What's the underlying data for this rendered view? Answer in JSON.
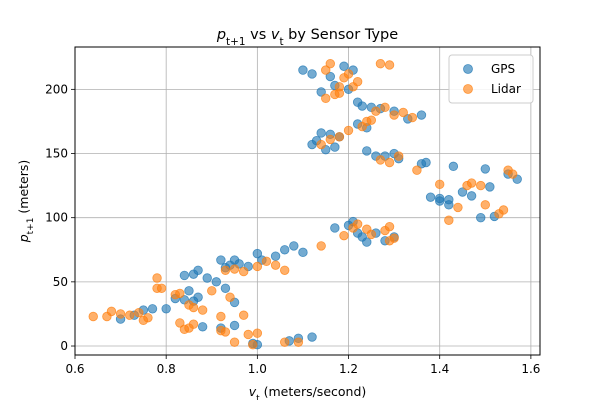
{
  "chart_data": {
    "type": "scatter",
    "title": {
      "var": "p",
      "sub": "t+1",
      "mid": " vs ",
      "var2": "v",
      "sub2": "t",
      "rest": " by Sensor Type"
    },
    "xlabel": {
      "var": "v",
      "sub": "t",
      "rest": " (meters/second)"
    },
    "ylabel": {
      "var": "p",
      "sub": "t+1",
      "rest": " (meters)"
    },
    "xlim": [
      0.6,
      1.62
    ],
    "ylim": [
      -7,
      233
    ],
    "xticks": [
      0.6,
      0.8,
      1.0,
      1.2,
      1.4,
      1.6
    ],
    "xtick_labels": [
      "0.6",
      "0.8",
      "1.0",
      "1.2",
      "1.4",
      "1.6"
    ],
    "yticks": [
      0,
      50,
      100,
      150,
      200
    ],
    "ytick_labels": [
      "0",
      "50",
      "100",
      "150",
      "200"
    ],
    "grid": true,
    "legend_position": "top-right",
    "series": [
      {
        "name": "GPS",
        "color": "#1f77b4",
        "points": [
          [
            0.7,
            21
          ],
          [
            0.73,
            24
          ],
          [
            0.75,
            28
          ],
          [
            0.77,
            29
          ],
          [
            0.8,
            29
          ],
          [
            0.82,
            37
          ],
          [
            0.84,
            36
          ],
          [
            0.86,
            35
          ],
          [
            0.88,
            15
          ],
          [
            0.92,
            14
          ],
          [
            0.95,
            16
          ],
          [
            0.99,
            2
          ],
          [
            1.0,
            1
          ],
          [
            0.84,
            55
          ],
          [
            0.86,
            56
          ],
          [
            0.87,
            59
          ],
          [
            0.89,
            53
          ],
          [
            0.91,
            50
          ],
          [
            0.93,
            45
          ],
          [
            0.95,
            34
          ],
          [
            0.85,
            43
          ],
          [
            0.87,
            38
          ],
          [
            0.93,
            61
          ],
          [
            0.95,
            67
          ],
          [
            0.96,
            64
          ],
          [
            0.98,
            62
          ],
          [
            1.0,
            72
          ],
          [
            1.01,
            67
          ],
          [
            1.04,
            70
          ],
          [
            1.06,
            75
          ],
          [
            1.08,
            78
          ],
          [
            1.1,
            73
          ],
          [
            0.92,
            67
          ],
          [
            0.94,
            63
          ],
          [
            1.07,
            4
          ],
          [
            1.09,
            6
          ],
          [
            1.12,
            7
          ],
          [
            1.1,
            215
          ],
          [
            1.12,
            212
          ],
          [
            1.14,
            198
          ],
          [
            1.16,
            210
          ],
          [
            1.19,
            218
          ],
          [
            1.21,
            215
          ],
          [
            1.17,
            203
          ],
          [
            1.2,
            200
          ],
          [
            1.22,
            190
          ],
          [
            1.23,
            187
          ],
          [
            1.25,
            186
          ],
          [
            1.27,
            185
          ],
          [
            1.3,
            183
          ],
          [
            1.33,
            177
          ],
          [
            1.36,
            180
          ],
          [
            1.22,
            173
          ],
          [
            1.24,
            170
          ],
          [
            1.12,
            157
          ],
          [
            1.13,
            160
          ],
          [
            1.14,
            166
          ],
          [
            1.15,
            153
          ],
          [
            1.16,
            165
          ],
          [
            1.17,
            155
          ],
          [
            1.18,
            163
          ],
          [
            1.24,
            152
          ],
          [
            1.26,
            148
          ],
          [
            1.28,
            148
          ],
          [
            1.3,
            150
          ],
          [
            1.31,
            146
          ],
          [
            1.36,
            142
          ],
          [
            1.37,
            143
          ],
          [
            1.38,
            116
          ],
          [
            1.4,
            113
          ],
          [
            1.42,
            110
          ],
          [
            1.43,
            140
          ],
          [
            1.45,
            120
          ],
          [
            1.47,
            117
          ],
          [
            1.49,
            100
          ],
          [
            1.5,
            138
          ],
          [
            1.51,
            124
          ],
          [
            1.52,
            101
          ],
          [
            1.55,
            134
          ],
          [
            1.57,
            130
          ],
          [
            1.17,
            92
          ],
          [
            1.2,
            94
          ],
          [
            1.21,
            97
          ],
          [
            1.22,
            88
          ],
          [
            1.23,
            85
          ],
          [
            1.24,
            81
          ],
          [
            1.26,
            88
          ],
          [
            1.28,
            82
          ],
          [
            1.3,
            85
          ],
          [
            1.4,
            115
          ],
          [
            1.42,
            114
          ]
        ]
      },
      {
        "name": "Lidar",
        "color": "#ff7f0e",
        "points": [
          [
            0.64,
            23
          ],
          [
            0.67,
            23
          ],
          [
            0.68,
            27
          ],
          [
            0.7,
            25
          ],
          [
            0.72,
            24
          ],
          [
            0.74,
            26
          ],
          [
            0.75,
            20
          ],
          [
            0.76,
            22
          ],
          [
            0.78,
            45
          ],
          [
            0.78,
            53
          ],
          [
            0.79,
            45
          ],
          [
            0.82,
            40
          ],
          [
            0.83,
            41
          ],
          [
            0.85,
            32
          ],
          [
            0.86,
            30
          ],
          [
            0.88,
            28
          ],
          [
            0.83,
            18
          ],
          [
            0.84,
            13
          ],
          [
            0.85,
            14
          ],
          [
            0.86,
            17
          ],
          [
            0.92,
            12
          ],
          [
            0.93,
            11
          ],
          [
            0.95,
            3
          ],
          [
            0.98,
            9
          ],
          [
            1.0,
            10
          ],
          [
            0.99,
            1
          ],
          [
            0.9,
            43
          ],
          [
            0.92,
            23
          ],
          [
            0.94,
            38
          ],
          [
            0.97,
            24
          ],
          [
            0.93,
            59
          ],
          [
            0.95,
            60
          ],
          [
            0.97,
            58
          ],
          [
            1.0,
            62
          ],
          [
            1.02,
            66
          ],
          [
            1.04,
            63
          ],
          [
            1.06,
            59
          ],
          [
            1.06,
            3
          ],
          [
            1.09,
            3
          ],
          [
            1.15,
            215
          ],
          [
            1.16,
            220
          ],
          [
            1.18,
            197
          ],
          [
            1.19,
            209
          ],
          [
            1.2,
            212
          ],
          [
            1.21,
            202
          ],
          [
            1.22,
            206
          ],
          [
            1.23,
            171
          ],
          [
            1.25,
            176
          ],
          [
            1.27,
            220
          ],
          [
            1.29,
            219
          ],
          [
            1.15,
            193
          ],
          [
            1.17,
            196
          ],
          [
            1.18,
            202
          ],
          [
            1.14,
            157
          ],
          [
            1.16,
            161
          ],
          [
            1.18,
            163
          ],
          [
            1.2,
            168
          ],
          [
            1.24,
            175
          ],
          [
            1.26,
            183
          ],
          [
            1.28,
            186
          ],
          [
            1.3,
            180
          ],
          [
            1.32,
            182
          ],
          [
            1.34,
            178
          ],
          [
            1.27,
            145
          ],
          [
            1.29,
            143
          ],
          [
            1.31,
            148
          ],
          [
            1.35,
            137
          ],
          [
            1.4,
            126
          ],
          [
            1.42,
            98
          ],
          [
            1.44,
            108
          ],
          [
            1.46,
            125
          ],
          [
            1.47,
            127
          ],
          [
            1.49,
            125
          ],
          [
            1.5,
            110
          ],
          [
            1.53,
            103
          ],
          [
            1.54,
            106
          ],
          [
            1.55,
            137
          ],
          [
            1.56,
            134
          ],
          [
            1.14,
            78
          ],
          [
            1.19,
            86
          ],
          [
            1.21,
            92
          ],
          [
            1.22,
            95
          ],
          [
            1.24,
            91
          ],
          [
            1.25,
            87
          ],
          [
            1.28,
            90
          ],
          [
            1.29,
            93
          ],
          [
            1.3,
            84
          ],
          [
            1.29,
            82
          ]
        ]
      }
    ]
  }
}
